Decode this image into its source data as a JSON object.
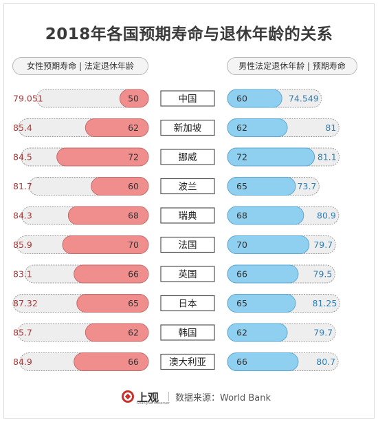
{
  "title": "2018年各国预期寿命与退休年龄的关系",
  "left_header": "女性预期寿命 | 法定退休年龄",
  "right_header": "男性法定退休年龄 | 预期寿命",
  "source": "数据来源：World Bank",
  "logo": {
    "text": "上观",
    "subtext": "Shanghai Observer"
  },
  "colors": {
    "female_bar": "#f08e8e",
    "female_bar_border": "#c46b6b",
    "male_bar": "#8fcfef",
    "male_bar_border": "#5aa8d4",
    "track": "#eeeeee",
    "female_life_text": "#a33a3a",
    "male_life_text": "#2f7fb5"
  },
  "chart_data": {
    "type": "bar",
    "categories": [
      "中国",
      "新加坡",
      "挪威",
      "波兰",
      "瑞典",
      "法国",
      "英国",
      "日本",
      "韩国",
      "澳大利亚"
    ],
    "female_life_expectancy": [
      "79.051",
      "85.4",
      "84.5",
      "81.7",
      "84.3",
      "85.9",
      "83.1",
      "87.32",
      "85.7",
      "84.9"
    ],
    "female_retirement_age": [
      "50",
      "62",
      "72",
      "60",
      "68",
      "70",
      "66",
      "65",
      "62",
      "66"
    ],
    "male_retirement_age": [
      "60",
      "62",
      "72",
      "65",
      "68",
      "70",
      "66",
      "65",
      "62",
      "66"
    ],
    "male_life_expectancy": [
      "74.549",
      "81",
      "81.1",
      "73.7",
      "80.9",
      "79.7",
      "79.5",
      "81.25",
      "79.7",
      "80.7"
    ]
  }
}
